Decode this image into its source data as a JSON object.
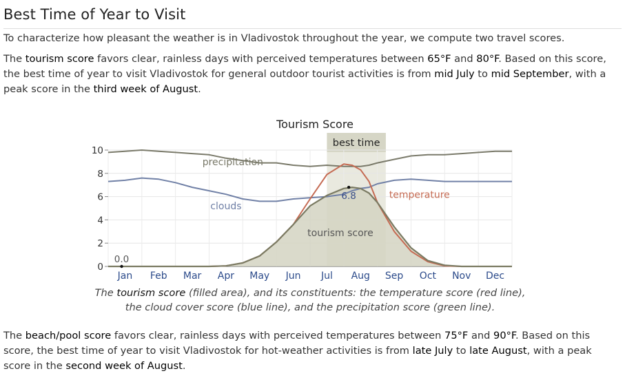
{
  "page": {
    "title": "Best Time of Year to Visit",
    "p1": "To characterize how pleasant the weather is in Vladivostok throughout the year, we compute two travel scores.",
    "p2": {
      "s1": "The ",
      "e1": "tourism score",
      "s2": " favors clear, rainless days with perceived temperatures between ",
      "e2": "65°F",
      "s3": " and ",
      "e3": "80°F",
      "s4": ". Based on this score, the best time of year to visit Vladivostok for general outdoor tourist activities is from ",
      "e4": "mid July",
      "s5": " to ",
      "e5": "mid September",
      "s6": ", with a peak score in the ",
      "e6": "third week of August",
      "s7": "."
    },
    "caption": {
      "s1": "The ",
      "e1": "tourism score",
      "s2": " (filled area), and its constituents: the temperature score (red line), the cloud cover score (blue line), and the precipitation score (green line)."
    },
    "p3": {
      "s1": "The ",
      "e1": "beach/pool score",
      "s2": " favors clear, rainless days with perceived temperatures between ",
      "e2": "75°F",
      "s3": " and ",
      "e3": "90°F",
      "s4": ". Based on this score, the best time of year to visit Vladivostok for hot-weather activities is from ",
      "e4": "late July",
      "s5": " to ",
      "e5": "late August",
      "s6": ", with a peak score in the ",
      "e6": "second week of August",
      "s7": "."
    }
  },
  "chart_data": {
    "type": "area",
    "title": "Tourism Score",
    "ylim": [
      0,
      10
    ],
    "yticks": [
      0,
      2,
      4,
      6,
      8,
      10
    ],
    "xlim": [
      0,
      12
    ],
    "months": [
      "Jan",
      "Feb",
      "Mar",
      "Apr",
      "May",
      "Jun",
      "Jul",
      "Aug",
      "Sep",
      "Oct",
      "Nov",
      "Dec"
    ],
    "grid": true,
    "best_time": {
      "label": "best time",
      "start": 6.5,
      "end": 8.25
    },
    "x": [
      0,
      0.5,
      1,
      1.5,
      2,
      2.5,
      3,
      3.5,
      4,
      4.5,
      5,
      5.5,
      6,
      6.5,
      7,
      7.25,
      7.5,
      7.75,
      8,
      8.5,
      9,
      9.5,
      10,
      10.5,
      11,
      11.5,
      12
    ],
    "series": [
      {
        "name": "tourism score",
        "role": "fill",
        "color": "#7a7a62",
        "fill": "#d4d4c2",
        "values": [
          0,
          0,
          0,
          0,
          0,
          0,
          0,
          0.05,
          0.3,
          0.9,
          2.1,
          3.6,
          5.2,
          6.1,
          6.7,
          6.8,
          6.7,
          6.3,
          5.5,
          3.4,
          1.6,
          0.5,
          0.1,
          0,
          0,
          0,
          0
        ]
      },
      {
        "name": "temperature",
        "role": "line",
        "color": "#c56b53",
        "values": [
          0,
          0,
          0,
          0,
          0,
          0,
          0,
          0.05,
          0.3,
          0.9,
          2.1,
          3.6,
          5.8,
          7.9,
          8.8,
          8.7,
          8.3,
          7.3,
          5.5,
          3.0,
          1.3,
          0.4,
          0.05,
          0,
          0,
          0,
          0
        ]
      },
      {
        "name": "clouds",
        "role": "line",
        "color": "#7080a6",
        "values": [
          7.3,
          7.4,
          7.6,
          7.5,
          7.2,
          6.8,
          6.5,
          6.2,
          5.8,
          5.6,
          5.6,
          5.8,
          5.9,
          6.0,
          6.2,
          6.5,
          6.7,
          6.8,
          7.1,
          7.4,
          7.5,
          7.4,
          7.3,
          7.3,
          7.3,
          7.3,
          7.3
        ]
      },
      {
        "name": "precipitation",
        "role": "line",
        "color": "#7a7a6a",
        "values": [
          9.8,
          9.9,
          10.0,
          9.9,
          9.8,
          9.7,
          9.6,
          9.3,
          9.1,
          8.9,
          8.9,
          8.7,
          8.6,
          8.7,
          8.6,
          8.6,
          8.6,
          8.7,
          8.9,
          9.2,
          9.5,
          9.6,
          9.6,
          9.7,
          9.8,
          9.9,
          9.9
        ]
      }
    ],
    "annotations": [
      {
        "text": "precipitation",
        "x": 2.8,
        "y": 8.7,
        "anchor": "start",
        "color": "#7a7a6a"
      },
      {
        "text": "clouds",
        "x": 3.5,
        "y": 4.9,
        "anchor": "middle",
        "color": "#7080a6"
      },
      {
        "text": "temperature",
        "x": 8.35,
        "y": 5.9,
        "anchor": "start",
        "color": "#c56b53"
      },
      {
        "text": "tourism score",
        "x": 6.9,
        "y": 2.6,
        "anchor": "middle",
        "color": "#555555"
      }
    ],
    "point_labels": [
      {
        "text": "6.8",
        "x": 7.15,
        "y": 6.8,
        "color": "#3a4f8a",
        "placement": "below"
      },
      {
        "text": "0.0",
        "x": 0.4,
        "y": 0,
        "color": "#555555",
        "placement": "above"
      }
    ]
  }
}
